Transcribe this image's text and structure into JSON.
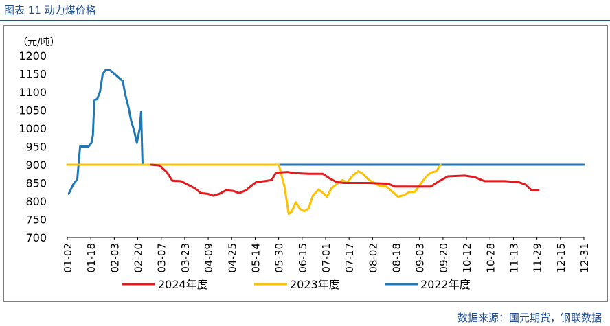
{
  "figure": {
    "title": "图表 11  动力煤价格",
    "source": "数据来源：国元期货，钢联数据"
  },
  "chart_data": {
    "type": "line",
    "ylabel": "（元/吨）",
    "ylim": [
      700,
      1200
    ],
    "yticks": [
      700,
      750,
      800,
      850,
      900,
      950,
      1000,
      1050,
      1100,
      1150,
      1200
    ],
    "x_day_range": [
      1,
      365
    ],
    "xticks": [
      "01-02",
      "01-18",
      "02-03",
      "02-20",
      "03-07",
      "03-23",
      "04-09",
      "04-25",
      "05-14",
      "05-30",
      "06-15",
      "07-01",
      "07-17",
      "08-02",
      "08-18",
      "09-03",
      "09-20",
      "10-12",
      "10-28",
      "11-13",
      "11-29",
      "12-15",
      "12-31"
    ],
    "grid": false,
    "legend_position": "bottom",
    "series": [
      {
        "name": "2024年度",
        "color": "#E31A1C",
        "points": [
          {
            "x": "03-01",
            "y": 900
          },
          {
            "x": "03-07",
            "y": 898
          },
          {
            "x": "03-12",
            "y": 880
          },
          {
            "x": "03-16",
            "y": 856
          },
          {
            "x": "03-22",
            "y": 855
          },
          {
            "x": "03-27",
            "y": 845
          },
          {
            "x": "04-01",
            "y": 835
          },
          {
            "x": "04-05",
            "y": 822
          },
          {
            "x": "04-10",
            "y": 820
          },
          {
            "x": "04-14",
            "y": 815
          },
          {
            "x": "04-18",
            "y": 820
          },
          {
            "x": "04-23",
            "y": 830
          },
          {
            "x": "04-28",
            "y": 828
          },
          {
            "x": "05-02",
            "y": 822
          },
          {
            "x": "05-07",
            "y": 830
          },
          {
            "x": "05-10",
            "y": 840
          },
          {
            "x": "05-14",
            "y": 852
          },
          {
            "x": "05-20",
            "y": 855
          },
          {
            "x": "05-25",
            "y": 858
          },
          {
            "x": "05-28",
            "y": 878
          },
          {
            "x": "06-05",
            "y": 880
          },
          {
            "x": "06-10",
            "y": 877
          },
          {
            "x": "06-20",
            "y": 875
          },
          {
            "x": "06-30",
            "y": 875
          },
          {
            "x": "07-05",
            "y": 862
          },
          {
            "x": "07-10",
            "y": 852
          },
          {
            "x": "07-15",
            "y": 850
          },
          {
            "x": "08-01",
            "y": 850
          },
          {
            "x": "08-15",
            "y": 848
          },
          {
            "x": "08-20",
            "y": 840
          },
          {
            "x": "09-01",
            "y": 840
          },
          {
            "x": "09-14",
            "y": 840
          },
          {
            "x": "09-20",
            "y": 855
          },
          {
            "x": "09-26",
            "y": 868
          },
          {
            "x": "10-08",
            "y": 870
          },
          {
            "x": "10-15",
            "y": 866
          },
          {
            "x": "10-22",
            "y": 855
          },
          {
            "x": "11-05",
            "y": 855
          },
          {
            "x": "11-15",
            "y": 852
          },
          {
            "x": "11-20",
            "y": 845
          },
          {
            "x": "11-24",
            "y": 830
          },
          {
            "x": "11-29",
            "y": 830
          }
        ]
      },
      {
        "name": "2023年度",
        "color": "#FFC000",
        "points": [
          {
            "x": "01-01",
            "y": 900
          },
          {
            "x": "02-20",
            "y": 900
          },
          {
            "x": "05-30",
            "y": 900
          },
          {
            "x": "06-03",
            "y": 840
          },
          {
            "x": "06-06",
            "y": 765
          },
          {
            "x": "06-08",
            "y": 770
          },
          {
            "x": "06-11",
            "y": 797
          },
          {
            "x": "06-14",
            "y": 778
          },
          {
            "x": "06-17",
            "y": 772
          },
          {
            "x": "06-20",
            "y": 780
          },
          {
            "x": "06-23",
            "y": 815
          },
          {
            "x": "06-27",
            "y": 832
          },
          {
            "x": "07-01",
            "y": 820
          },
          {
            "x": "07-03",
            "y": 812
          },
          {
            "x": "07-06",
            "y": 835
          },
          {
            "x": "07-10",
            "y": 848
          },
          {
            "x": "07-14",
            "y": 858
          },
          {
            "x": "07-17",
            "y": 850
          },
          {
            "x": "07-21",
            "y": 870
          },
          {
            "x": "07-25",
            "y": 882
          },
          {
            "x": "07-28",
            "y": 876
          },
          {
            "x": "08-01",
            "y": 860
          },
          {
            "x": "08-05",
            "y": 850
          },
          {
            "x": "08-09",
            "y": 842
          },
          {
            "x": "08-14",
            "y": 840
          },
          {
            "x": "08-18",
            "y": 826
          },
          {
            "x": "08-22",
            "y": 812
          },
          {
            "x": "08-26",
            "y": 816
          },
          {
            "x": "08-30",
            "y": 825
          },
          {
            "x": "09-03",
            "y": 826
          },
          {
            "x": "09-07",
            "y": 848
          },
          {
            "x": "09-11",
            "y": 868
          },
          {
            "x": "09-14",
            "y": 878
          },
          {
            "x": "09-18",
            "y": 882
          },
          {
            "x": "09-21",
            "y": 900
          }
        ]
      },
      {
        "name": "2022年度",
        "color": "#1F77B4",
        "points": [
          {
            "x": "01-02",
            "y": 820
          },
          {
            "x": "01-05",
            "y": 845
          },
          {
            "x": "01-08",
            "y": 860
          },
          {
            "x": "01-10",
            "y": 950
          },
          {
            "x": "01-13",
            "y": 950
          },
          {
            "x": "01-16",
            "y": 950
          },
          {
            "x": "01-18",
            "y": 960
          },
          {
            "x": "01-19",
            "y": 980
          },
          {
            "x": "01-20",
            "y": 1078
          },
          {
            "x": "01-22",
            "y": 1080
          },
          {
            "x": "01-24",
            "y": 1100
          },
          {
            "x": "01-26",
            "y": 1150
          },
          {
            "x": "01-28",
            "y": 1160
          },
          {
            "x": "01-31",
            "y": 1160
          },
          {
            "x": "02-03",
            "y": 1150
          },
          {
            "x": "02-06",
            "y": 1140
          },
          {
            "x": "02-09",
            "y": 1130
          },
          {
            "x": "02-11",
            "y": 1090
          },
          {
            "x": "02-13",
            "y": 1060
          },
          {
            "x": "02-15",
            "y": 1020
          },
          {
            "x": "02-17",
            "y": 995
          },
          {
            "x": "02-19",
            "y": 960
          },
          {
            "x": "02-21",
            "y": 1000
          },
          {
            "x": "02-22",
            "y": 1045
          },
          {
            "x": "02-23",
            "y": 900
          },
          {
            "x": "12-31",
            "y": 900
          }
        ]
      }
    ]
  }
}
